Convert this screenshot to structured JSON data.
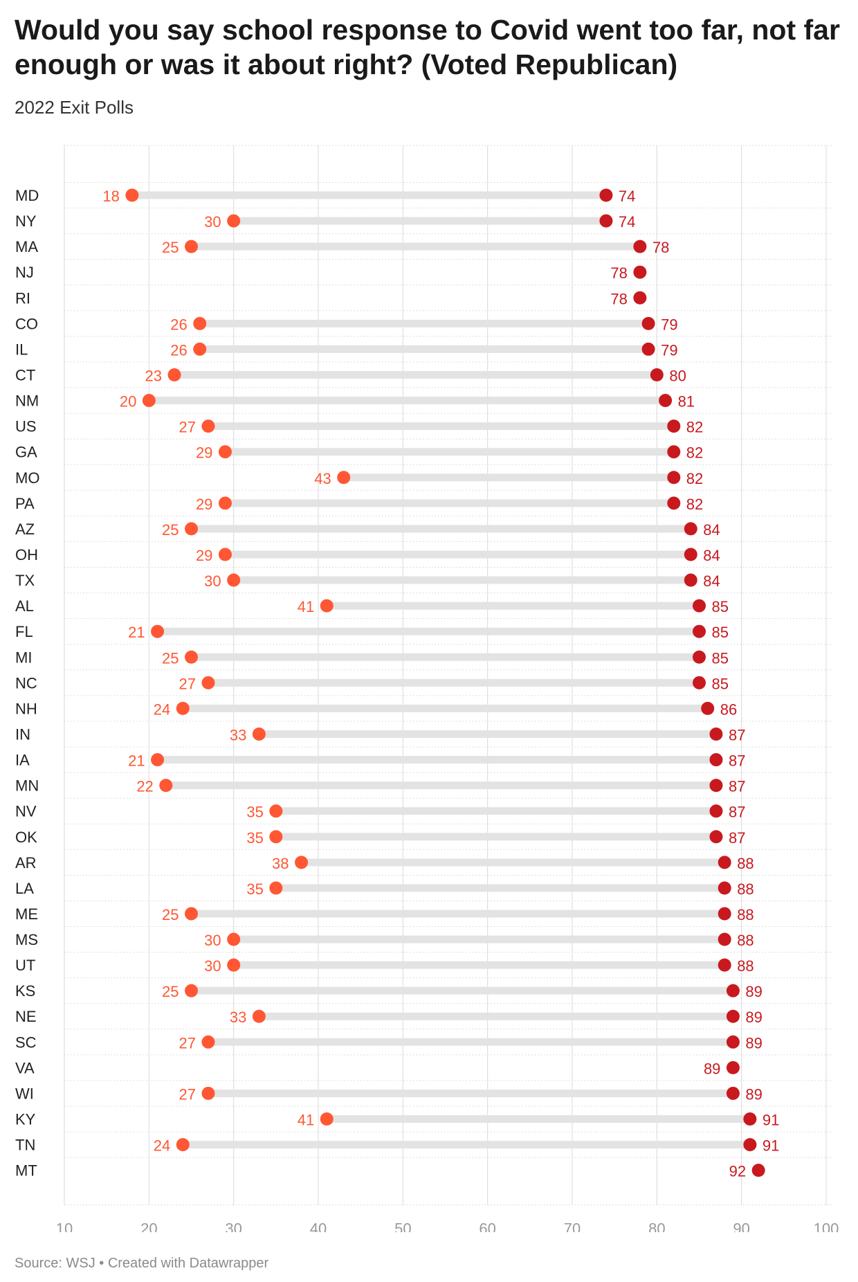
{
  "title": "Would you say school response to Covid went too far, not far enough or was it about right? (Voted Republican)",
  "subtitle": "2022 Exit Polls",
  "source": "Source: WSJ • Created with Datawrapper",
  "colors": {
    "low_dot": "#ff5733",
    "high_dot": "#c8191f",
    "connector": "#e3e3e3",
    "grid": "#d9d9d9",
    "tick_label": "#999999",
    "state_label": "#222222"
  },
  "chart_data": {
    "type": "dot-range",
    "xlim": [
      10,
      100
    ],
    "x_ticks": [
      10,
      20,
      30,
      40,
      50,
      60,
      70,
      80,
      90,
      100
    ],
    "grid": true,
    "rows": [
      {
        "state": "MD",
        "low": 18,
        "high": 74
      },
      {
        "state": "NY",
        "low": 30,
        "high": 74
      },
      {
        "state": "MA",
        "low": 25,
        "high": 78
      },
      {
        "state": "NJ",
        "low": null,
        "high": 78
      },
      {
        "state": "RI",
        "low": null,
        "high": 78
      },
      {
        "state": "CO",
        "low": 26,
        "high": 79
      },
      {
        "state": "IL",
        "low": 26,
        "high": 79
      },
      {
        "state": "CT",
        "low": 23,
        "high": 80
      },
      {
        "state": "NM",
        "low": 20,
        "high": 81
      },
      {
        "state": "US",
        "low": 27,
        "high": 82
      },
      {
        "state": "GA",
        "low": 29,
        "high": 82
      },
      {
        "state": "MO",
        "low": 43,
        "high": 82
      },
      {
        "state": "PA",
        "low": 29,
        "high": 82
      },
      {
        "state": "AZ",
        "low": 25,
        "high": 84
      },
      {
        "state": "OH",
        "low": 29,
        "high": 84
      },
      {
        "state": "TX",
        "low": 30,
        "high": 84
      },
      {
        "state": "AL",
        "low": 41,
        "high": 85
      },
      {
        "state": "FL",
        "low": 21,
        "high": 85
      },
      {
        "state": "MI",
        "low": 25,
        "high": 85
      },
      {
        "state": "NC",
        "low": 27,
        "high": 85
      },
      {
        "state": "NH",
        "low": 24,
        "high": 86
      },
      {
        "state": "IN",
        "low": 33,
        "high": 87
      },
      {
        "state": "IA",
        "low": 21,
        "high": 87
      },
      {
        "state": "MN",
        "low": 22,
        "high": 87
      },
      {
        "state": "NV",
        "low": 35,
        "high": 87
      },
      {
        "state": "OK",
        "low": 35,
        "high": 87
      },
      {
        "state": "AR",
        "low": 38,
        "high": 88
      },
      {
        "state": "LA",
        "low": 35,
        "high": 88
      },
      {
        "state": "ME",
        "low": 25,
        "high": 88
      },
      {
        "state": "MS",
        "low": 30,
        "high": 88
      },
      {
        "state": "UT",
        "low": 30,
        "high": 88
      },
      {
        "state": "KS",
        "low": 25,
        "high": 89
      },
      {
        "state": "NE",
        "low": 33,
        "high": 89
      },
      {
        "state": "SC",
        "low": 27,
        "high": 89
      },
      {
        "state": "VA",
        "low": null,
        "high": 89
      },
      {
        "state": "WI",
        "low": 27,
        "high": 89
      },
      {
        "state": "KY",
        "low": 41,
        "high": 91
      },
      {
        "state": "TN",
        "low": 24,
        "high": 91
      },
      {
        "state": "MT",
        "low": null,
        "high": 92
      }
    ]
  }
}
